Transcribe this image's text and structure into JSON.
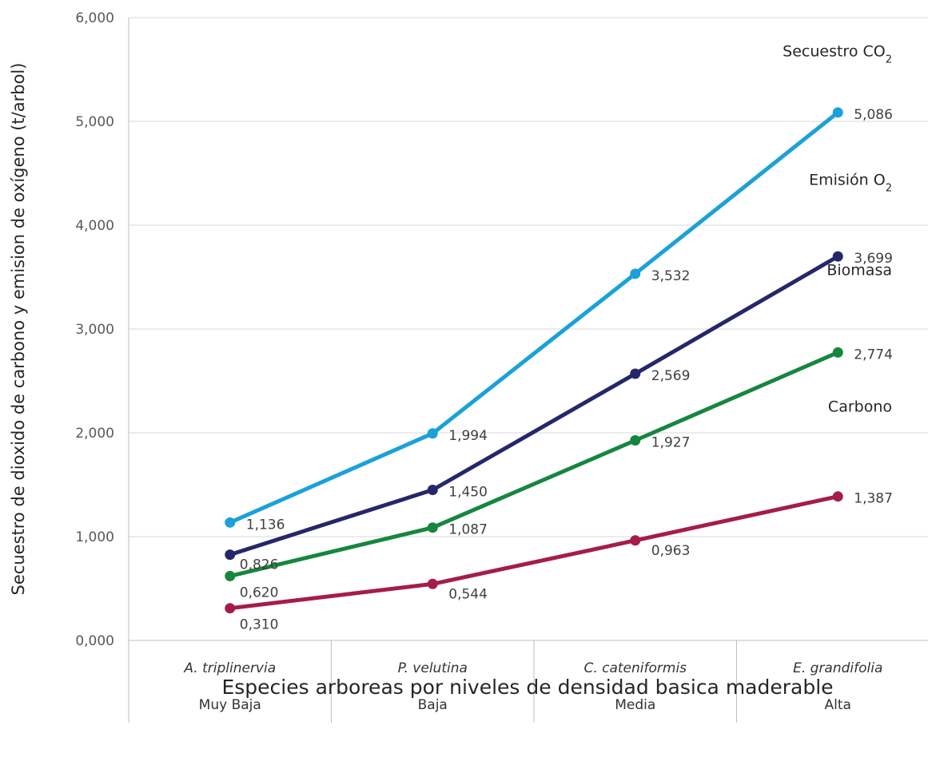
{
  "chart_data": {
    "type": "line",
    "categories": [
      "A. triplinervia",
      "P. velutina",
      "C. cateniformis",
      "E. grandifolia"
    ],
    "levels": [
      "Muy Baja",
      "Baja",
      "Media",
      "Alta"
    ],
    "xlabel": "Especies arboreas por niveles de densidad basica maderable",
    "ylabel": "Secuestro de dioxido de carbono y emision de oxígeno (t/arbol)",
    "ylim": [
      0,
      6
    ],
    "yticks": [
      "0,000",
      "1,000",
      "2,000",
      "3,000",
      "4,000",
      "5,000",
      "6,000"
    ],
    "grid": true,
    "legend": "inline-labels-right",
    "series": [
      {
        "name": "Secuestro CO",
        "name_sub": "2",
        "color": "#1BA1D9",
        "values": [
          1.136,
          1.994,
          3.532,
          5.086
        ],
        "labels": [
          "1,136",
          "1,994",
          "3,532",
          "5,086"
        ]
      },
      {
        "name": "Emisión O",
        "name_sub": "2",
        "color": "#25276A",
        "values": [
          0.826,
          1.45,
          2.569,
          3.699
        ],
        "labels": [
          "0,826",
          "1,450",
          "2,569",
          "3,699"
        ]
      },
      {
        "name": "Biomasa",
        "name_sub": "",
        "color": "#16863F",
        "values": [
          0.62,
          1.087,
          1.927,
          2.774
        ],
        "labels": [
          "0,620",
          "1,087",
          "1,927",
          "2,774"
        ]
      },
      {
        "name": "Carbono",
        "name_sub": "",
        "color": "#A51C4C",
        "values": [
          0.31,
          0.544,
          0.963,
          1.387
        ],
        "labels": [
          "0,310",
          "0,544",
          "0,963",
          "1,387"
        ]
      }
    ]
  }
}
